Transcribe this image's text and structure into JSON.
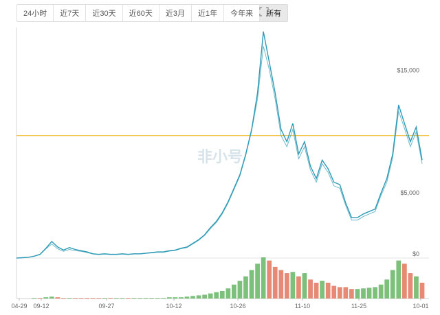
{
  "toolbar": {
    "tabs": [
      {
        "label": "24小时",
        "active": false
      },
      {
        "label": "近7天",
        "active": false
      },
      {
        "label": "近30天",
        "active": false
      },
      {
        "label": "近60天",
        "active": false
      },
      {
        "label": "近3月",
        "active": false
      },
      {
        "label": "近1年",
        "active": false
      },
      {
        "label": "今年来",
        "active": false
      },
      {
        "label": "所有",
        "active": true
      }
    ],
    "fullscreen_icon": "expand-icon"
  },
  "watermark": "非小号",
  "colors": {
    "price_line": "#2e9ab5",
    "reference_line": "#f5c24b",
    "volume_up": "#7cc07c",
    "volume_down": "#e68a76",
    "axis_text": "#666666",
    "grid": "#e6e6e6"
  },
  "chart_data": {
    "type": "line",
    "x_tick_labels": [
      "04-29",
      "09-12",
      "09-27",
      "10-12",
      "10-26",
      "11-10",
      "11-25",
      "10-01"
    ],
    "y_tick_labels": [
      "$0",
      "$5,000",
      "$15,000"
    ],
    "ylim": [
      0,
      18500
    ],
    "reference_line_value": 10000,
    "series": [
      {
        "values": [
          0,
          30,
          60,
          150,
          300,
          800,
          1350,
          900,
          650,
          850,
          700,
          600,
          500,
          350,
          300,
          350,
          300,
          300,
          350,
          300,
          350,
          350,
          400,
          450,
          500,
          500,
          600,
          650,
          800,
          900,
          1200,
          1500,
          1900,
          2500,
          3000,
          3700,
          4600,
          5700,
          6800,
          8500,
          10500,
          13500,
          18500,
          16000,
          13500,
          10500,
          9500,
          11000,
          8500,
          9500,
          7500,
          6500,
          8000,
          7300,
          6200,
          6000,
          4500,
          3300,
          3300,
          3600,
          3800,
          4000,
          5300,
          6500,
          8500,
          12500,
          11000,
          9500,
          10700,
          8000
        ],
        "lower_band_values": [
          0,
          30,
          60,
          150,
          280,
          750,
          1150,
          750,
          550,
          700,
          600,
          550,
          450,
          330,
          280,
          320,
          280,
          280,
          320,
          280,
          330,
          330,
          380,
          420,
          470,
          470,
          560,
          620,
          760,
          850,
          1150,
          1450,
          1850,
          2400,
          2900,
          3600,
          4500,
          5600,
          6700,
          8400,
          10400,
          13000,
          17300,
          15400,
          13000,
          10000,
          9100,
          10500,
          8100,
          9100,
          7200,
          6200,
          7700,
          7000,
          5900,
          5700,
          4300,
          3100,
          3100,
          3400,
          3600,
          3800,
          5100,
          6200,
          8200,
          12000,
          10600,
          9100,
          10300,
          7700
        ]
      }
    ],
    "volume_values": [
      0,
      0,
      0,
      1,
      1,
      2,
      3,
      2,
      1,
      1,
      1,
      1,
      1,
      1,
      1,
      1,
      1,
      1,
      1,
      1,
      1,
      1,
      1,
      1,
      1,
      1,
      2,
      2,
      2,
      3,
      4,
      5,
      6,
      8,
      10,
      12,
      16,
      22,
      28,
      35,
      45,
      55,
      65,
      60,
      50,
      45,
      40,
      42,
      35,
      40,
      30,
      25,
      28,
      25,
      20,
      18,
      18,
      15,
      15,
      16,
      17,
      18,
      22,
      30,
      45,
      60,
      55,
      40,
      35,
      25
    ],
    "volume_up": [
      true,
      true,
      true,
      true,
      false,
      true,
      true,
      false,
      false,
      true,
      false,
      false,
      false,
      false,
      false,
      true,
      false,
      true,
      true,
      false,
      true,
      true,
      true,
      true,
      true,
      true,
      true,
      true,
      true,
      true,
      true,
      true,
      true,
      true,
      true,
      true,
      true,
      true,
      true,
      true,
      true,
      true,
      true,
      false,
      false,
      false,
      false,
      true,
      false,
      true,
      false,
      false,
      true,
      false,
      false,
      false,
      false,
      false,
      true,
      true,
      true,
      true,
      true,
      true,
      true,
      true,
      false,
      false,
      true,
      false
    ]
  }
}
